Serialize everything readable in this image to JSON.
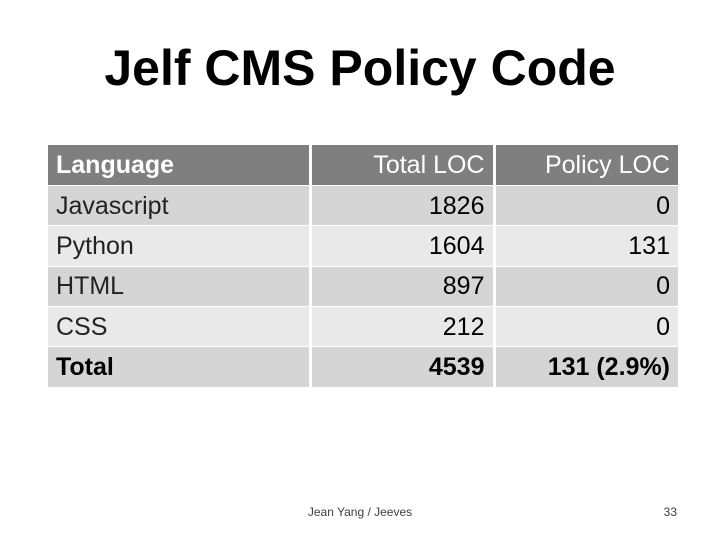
{
  "slide": {
    "title": "Jelf CMS Policy Code",
    "footer": "Jean Yang / Jeeves",
    "page_number": "33"
  },
  "table": {
    "headers": {
      "language": "Language",
      "total_loc": "Total LOC",
      "policy_loc": "Policy LOC"
    },
    "rows": [
      {
        "language": "Javascript",
        "total_loc": "1826",
        "policy_loc": "0"
      },
      {
        "language": "Python",
        "total_loc": "1604",
        "policy_loc": "131"
      },
      {
        "language": "HTML",
        "total_loc": "897",
        "policy_loc": "0"
      },
      {
        "language": "CSS",
        "total_loc": "212",
        "policy_loc": "0"
      }
    ],
    "total": {
      "language": "Total",
      "total_loc": "4539",
      "policy_loc": "131 (2.9%)"
    }
  },
  "colors": {
    "header_bg": "#7f7f7f",
    "row_dark": "#d5d5d5",
    "row_light": "#e9e9e9"
  }
}
